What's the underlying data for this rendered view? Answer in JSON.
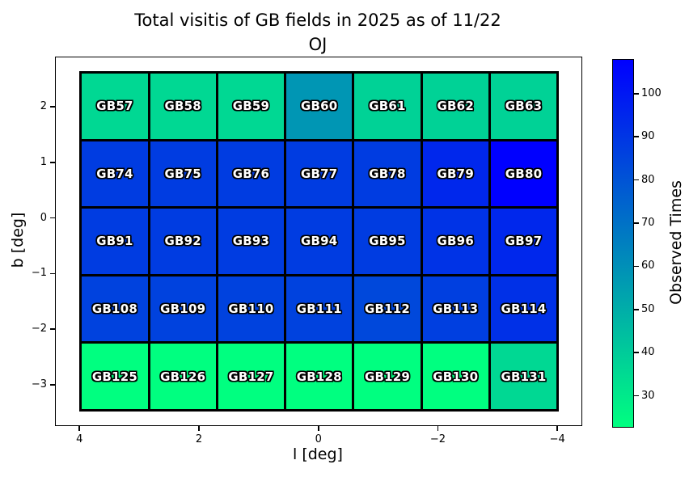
{
  "figure": {
    "title_line1": "Total visitis of GB fields in 2025 as of 11/22",
    "title_line2": "OJ"
  },
  "chart_data": {
    "type": "heatmap",
    "title": "Total visitis of GB fields in 2025 as of 11/22",
    "subtitle": "OJ",
    "xlabel": "l [deg]",
    "ylabel": "b [deg]",
    "colorbar_label": "Observed Times",
    "colormap": "winter_r",
    "colormap_min_color": "#00ff80",
    "colormap_max_color": "#0000ff",
    "vmin": 23,
    "vmax": 108,
    "xlim": [
      4.41,
      -4.39
    ],
    "ylim": [
      2.9,
      -3.71
    ],
    "x_ticks": [
      {
        "value": 4,
        "label": "4"
      },
      {
        "value": 2,
        "label": "2"
      },
      {
        "value": 0,
        "label": "0"
      },
      {
        "value": -2,
        "label": "−2"
      },
      {
        "value": -4,
        "label": "−4"
      }
    ],
    "y_ticks": [
      {
        "value": 2,
        "label": "2"
      },
      {
        "value": 1,
        "label": "1"
      },
      {
        "value": 0,
        "label": "0"
      },
      {
        "value": -1,
        "label": "−1"
      },
      {
        "value": -2,
        "label": "−2"
      },
      {
        "value": -3,
        "label": "−3"
      }
    ],
    "colorbar_ticks": [
      {
        "value": 30,
        "label": "30"
      },
      {
        "value": 40,
        "label": "40"
      },
      {
        "value": 50,
        "label": "50"
      },
      {
        "value": 60,
        "label": "60"
      },
      {
        "value": 70,
        "label": "70"
      },
      {
        "value": 80,
        "label": "80"
      },
      {
        "value": 90,
        "label": "90"
      },
      {
        "value": 100,
        "label": "100"
      }
    ],
    "grid": {
      "cell_w_deg": 1.146,
      "cell_h_deg": 1.224,
      "col_centers_deg": [
        3.44,
        2.29,
        1.15,
        0,
        -1.15,
        -2.29,
        -3.44
      ],
      "row_centers_deg": [
        2.04,
        0.82,
        -0.4,
        -1.63,
        -2.85
      ]
    },
    "rows": [
      {
        "cells": [
          {
            "label": "GB57",
            "value": 36
          },
          {
            "label": "GB58",
            "value": 36
          },
          {
            "label": "GB59",
            "value": 36
          },
          {
            "label": "GB60",
            "value": 58
          },
          {
            "label": "GB61",
            "value": 38
          },
          {
            "label": "GB62",
            "value": 38
          },
          {
            "label": "GB63",
            "value": 38
          }
        ]
      },
      {
        "cells": [
          {
            "label": "GB74",
            "value": 88
          },
          {
            "label": "GB75",
            "value": 88
          },
          {
            "label": "GB76",
            "value": 88
          },
          {
            "label": "GB77",
            "value": 88
          },
          {
            "label": "GB78",
            "value": 88
          },
          {
            "label": "GB79",
            "value": 95
          },
          {
            "label": "GB80",
            "value": 108
          }
        ]
      },
      {
        "cells": [
          {
            "label": "GB91",
            "value": 88
          },
          {
            "label": "GB92",
            "value": 88
          },
          {
            "label": "GB93",
            "value": 88
          },
          {
            "label": "GB94",
            "value": 88
          },
          {
            "label": "GB95",
            "value": 88
          },
          {
            "label": "GB96",
            "value": 91
          },
          {
            "label": "GB97",
            "value": 95
          }
        ]
      },
      {
        "cells": [
          {
            "label": "GB108",
            "value": 86
          },
          {
            "label": "GB109",
            "value": 86
          },
          {
            "label": "GB110",
            "value": 86
          },
          {
            "label": "GB111",
            "value": 86
          },
          {
            "label": "GB112",
            "value": 84
          },
          {
            "label": "GB113",
            "value": 87
          },
          {
            "label": "GB114",
            "value": 92
          }
        ]
      },
      {
        "cells": [
          {
            "label": "GB125",
            "value": 23
          },
          {
            "label": "GB126",
            "value": 23
          },
          {
            "label": "GB127",
            "value": 23
          },
          {
            "label": "GB128",
            "value": 23
          },
          {
            "label": "GB129",
            "value": 23
          },
          {
            "label": "GB130",
            "value": 23
          },
          {
            "label": "GB131",
            "value": 36
          }
        ]
      }
    ]
  }
}
